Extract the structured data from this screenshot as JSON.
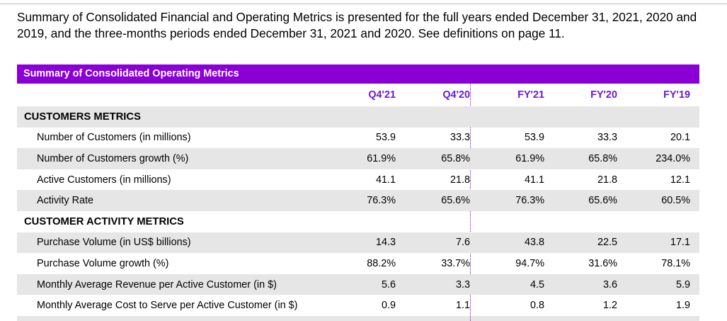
{
  "intro": "Summary of Consolidated Financial and Operating Metrics is presented for the full years ended December 31, 2021, 2020 and 2019, and the three-months periods ended December 31, 2021 and 2020. See definitions on page 11.",
  "table": {
    "title": "Summary of Consolidated Operating Metrics",
    "columns": [
      "Q4'21",
      "Q4'20",
      "FY'21",
      "FY'20",
      "FY'19"
    ],
    "sections": [
      {
        "title": "CUSTOMERS METRICS",
        "rows": [
          {
            "label": "Number of Customers (in millions)",
            "values": [
              "53.9",
              "33.3",
              "53.9",
              "33.3",
              "20.1"
            ]
          },
          {
            "label": "Number of Customers growth (%)",
            "values": [
              "61.9%",
              "65.8%",
              "61.9%",
              "65.8%",
              "234.0%"
            ]
          },
          {
            "label": "Active Customers (in millions)",
            "values": [
              "41.1",
              "21.8",
              "41.1",
              "21.8",
              "12.1"
            ]
          },
          {
            "label": "Activity Rate",
            "values": [
              "76.3%",
              "65.6%",
              "76.3%",
              "65.6%",
              "60.5%"
            ]
          }
        ]
      },
      {
        "title": "CUSTOMER ACTIVITY METRICS",
        "rows": [
          {
            "label": "Purchase Volume (in US$ billions)",
            "values": [
              "14.3",
              "7.6",
              "43.8",
              "22.5",
              "17.1"
            ]
          },
          {
            "label": "Purchase Volume growth (%)",
            "values": [
              "88.2%",
              "33.7%",
              "94.7%",
              "31.6%",
              "78.1%"
            ]
          },
          {
            "label": "Monthly Average Revenue per Active Customer (in $)",
            "values": [
              "5.6",
              "3.3",
              "4.5",
              "3.6",
              "5.9"
            ]
          },
          {
            "label": "Monthly Average Cost to Serve per Active Customer (in $)",
            "values": [
              "0.9",
              "1.1",
              "0.8",
              "1.2",
              "1.9"
            ]
          }
        ]
      }
    ]
  },
  "colors": {
    "header_bg": "#8a00d4",
    "column_header_text": "#6a19d6",
    "shade": "#e6e6e6"
  }
}
